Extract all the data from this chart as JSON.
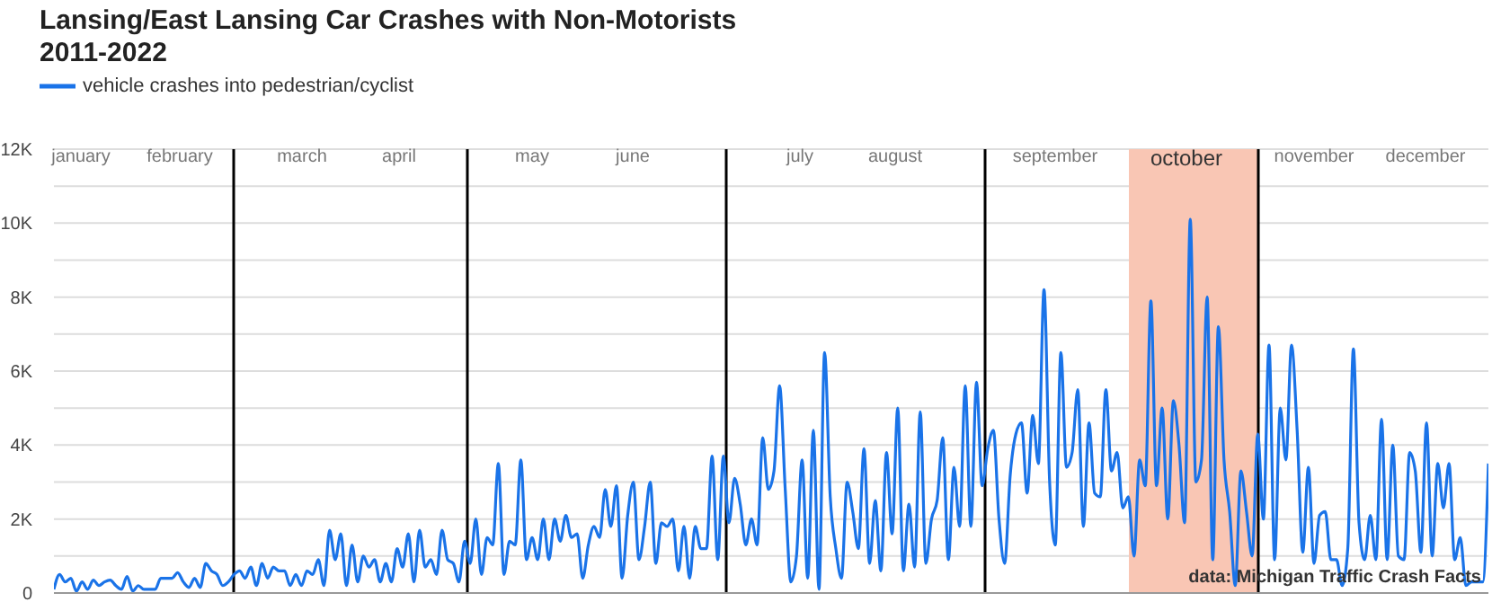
{
  "chart_data": {
    "type": "line",
    "title": "Lansing/East Lansing Car Crashes with Non-Motorists\n2011-2022",
    "categories": [
      null,
      null,
      null,
      null,
      null,
      null,
      null,
      null,
      null,
      null,
      null,
      null,
      null,
      null,
      null,
      null,
      null,
      null,
      null,
      null,
      null,
      null,
      null,
      null,
      null,
      null,
      null,
      null,
      null,
      null,
      null,
      null,
      null,
      null,
      null,
      null,
      null,
      null,
      null,
      null,
      null,
      null,
      null,
      null,
      null,
      null,
      null,
      null,
      null,
      null,
      null,
      null,
      null,
      null,
      null,
      null,
      null,
      null,
      null,
      null,
      null,
      null,
      null,
      null,
      null,
      null,
      null,
      null,
      null,
      null,
      null,
      null,
      null,
      null,
      null,
      null,
      null,
      null,
      null,
      null,
      null,
      null,
      null,
      null,
      null,
      null,
      null,
      null,
      null,
      null,
      null,
      null,
      null,
      null,
      null,
      null,
      null,
      null,
      null,
      null,
      null,
      null,
      null,
      null,
      null,
      null,
      null,
      null,
      null,
      null,
      null,
      null,
      null,
      null,
      null,
      null,
      null,
      null,
      null,
      null,
      null,
      null,
      null,
      null,
      null,
      null,
      null,
      null,
      null,
      null,
      null,
      null,
      null,
      null,
      null,
      null,
      null,
      null,
      null,
      null,
      null,
      null,
      null,
      null,
      null,
      null,
      null,
      null,
      null,
      null,
      null,
      null,
      null,
      null,
      null,
      null,
      null,
      null,
      null,
      null,
      null,
      null,
      null,
      null,
      null,
      null,
      null,
      null,
      null,
      null,
      null,
      null,
      null,
      null,
      null,
      null,
      null,
      null,
      null,
      null,
      null,
      null,
      null,
      null,
      null,
      null,
      null,
      null,
      null,
      null,
      null,
      null,
      null,
      null,
      null,
      null,
      null,
      null,
      null,
      null,
      null,
      null,
      null,
      null,
      null,
      null,
      null,
      null,
      null,
      null,
      null,
      null,
      null,
      null,
      null,
      null,
      null,
      null,
      null,
      null,
      null,
      null,
      null,
      null,
      null,
      null,
      null,
      null,
      null,
      null,
      null,
      null,
      null,
      null,
      null,
      null,
      null,
      null,
      null,
      null,
      null,
      null,
      null,
      null,
      null,
      null,
      null,
      null,
      null,
      null,
      null,
      null,
      null,
      null,
      null,
      null
    ],
    "series": [
      {
        "name": "vehicle crashes into pedestrian/cyclist",
        "color": "#1a73e8",
        "values": [
          100,
          500,
          300,
          400,
          50,
          300,
          100,
          350,
          200,
          300,
          350,
          200,
          100,
          450,
          50,
          200,
          100,
          100,
          100,
          400,
          400,
          400,
          550,
          300,
          150,
          400,
          150,
          800,
          600,
          500,
          200,
          300,
          500,
          600,
          400,
          700,
          200,
          800,
          400,
          700,
          600,
          600,
          200,
          500,
          200,
          600,
          500,
          900,
          200,
          1700,
          900,
          1600,
          200,
          1300,
          300,
          1000,
          700,
          900,
          300,
          800,
          300,
          1200,
          700,
          1600,
          300,
          1700,
          700,
          900,
          500,
          1700,
          900,
          800,
          300,
          1400,
          800,
          2000,
          500,
          1500,
          1300,
          3500,
          500,
          1400,
          1300,
          3600,
          900,
          1500,
          900,
          2000,
          900,
          2000,
          1400,
          2100,
          1500,
          1600,
          400,
          1300,
          1800,
          1500,
          2800,
          1800,
          2900,
          400,
          2100,
          3000,
          900,
          1800,
          3000,
          800,
          1900,
          1800,
          2000,
          600,
          1800,
          400,
          1800,
          1200,
          1200,
          3700,
          900,
          3700,
          1900,
          3100,
          2400,
          1300,
          2000,
          1300,
          4200,
          2800,
          3300,
          5600,
          2800,
          300,
          1000,
          3600,
          400,
          4400,
          100,
          6500,
          2600,
          1200,
          400,
          3000,
          2200,
          1200,
          3900,
          800,
          2500,
          600,
          3800,
          1600,
          5000,
          600,
          2400,
          700,
          4900,
          800,
          2000,
          2500,
          4200,
          900,
          3400,
          1800,
          5600,
          1800,
          5700,
          2900,
          3900,
          4400,
          2000,
          800,
          3200,
          4300,
          4600,
          2700,
          4800,
          3500,
          8200,
          3000,
          1300,
          6500,
          3400,
          3800,
          5500,
          1800,
          4600,
          2700,
          2600,
          5500,
          3300,
          3800,
          2300,
          2600,
          1000,
          3600,
          2900,
          7900,
          2900,
          5000,
          2000,
          5200,
          4000,
          1900,
          10100,
          3000,
          3600,
          8000,
          900,
          7200,
          3600,
          2200,
          200,
          3300,
          2200,
          1000,
          4300,
          2000,
          6700,
          900,
          5000,
          3600,
          6700,
          4400,
          1100,
          3400,
          800,
          2100,
          2200,
          900,
          900,
          200,
          1200,
          6600,
          1900,
          900,
          2100,
          900,
          4700,
          900,
          4000,
          1000,
          900,
          3800,
          3300,
          1100,
          4600,
          1000,
          3500,
          2300,
          3500,
          900,
          1500,
          200,
          300,
          300,
          300,
          3500
        ]
      }
    ],
    "ylim": [
      0,
      12000
    ],
    "yticks": [
      0,
      {
        "value": 1000,
        "label": null
      },
      {
        "value": 2000,
        "label": "2K"
      },
      {
        "value": 3000,
        "label": null
      },
      {
        "value": 4000,
        "label": "4K"
      },
      {
        "value": 5000,
        "label": null
      },
      {
        "value": 6000,
        "label": "6K"
      },
      {
        "value": 7000,
        "label": null
      },
      {
        "value": 8000,
        "label": "8K"
      },
      {
        "value": 9000,
        "label": null
      },
      {
        "value": 10000,
        "label": "10K"
      },
      {
        "value": 11000,
        "label": null
      },
      {
        "value": 12000,
        "label": "12K"
      }
    ],
    "grid": "y",
    "legend": "top left",
    "tick_labels": "y",
    "marker": "none",
    "line_style": "solid",
    "annotations": [
      "january",
      "february",
      "march",
      "april",
      "may",
      "june",
      "july",
      "august",
      "september",
      "october",
      "november",
      "december",
      "data: Michigan Traffic Crash Facts"
    ]
  }
}
